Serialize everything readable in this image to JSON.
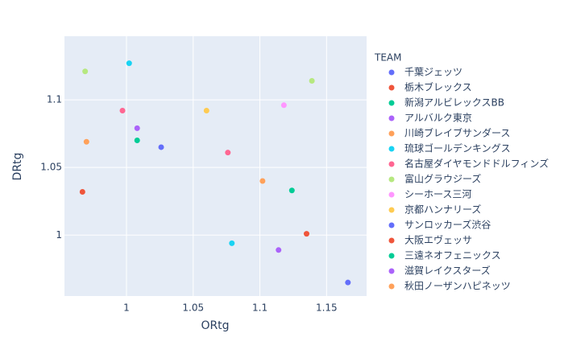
{
  "chart_data": {
    "type": "scatter",
    "x_label": "ORtg",
    "y_label": "DRtg",
    "legend_title": "TEAM",
    "xlim": [
      0.9535,
      1.18
    ],
    "xticks": [
      1,
      1.05,
      1.1,
      1.15
    ],
    "ylim": [
      0.955,
      1.147
    ],
    "yticks": [
      1,
      1.05,
      1.1
    ],
    "grid": true,
    "series": [
      {
        "name": "千葉ジェッツ",
        "color": "#636efa",
        "x": [
          1.026
        ],
        "values": [
          1.065
        ]
      },
      {
        "name": "栃木ブレックス",
        "color": "#EF553B",
        "x": [
          0.967
        ],
        "values": [
          1.032
        ]
      },
      {
        "name": "新潟アルビレックスBB",
        "color": "#00cc96",
        "x": [
          1.008
        ],
        "values": [
          1.07
        ]
      },
      {
        "name": "アルバルク東京",
        "color": "#ab63fa",
        "x": [
          1.008
        ],
        "values": [
          1.079
        ]
      },
      {
        "name": "川崎ブレイブサンダース",
        "color": "#FFA15A",
        "x": [
          0.97
        ],
        "values": [
          1.069
        ]
      },
      {
        "name": "琉球ゴールデンキングス",
        "color": "#19d3f3",
        "x": [
          1.002
        ],
        "values": [
          1.127
        ]
      },
      {
        "name": "名古屋ダイヤモンドドルフィンズ",
        "color": "#FF6692",
        "x": [
          0.997
        ],
        "values": [
          1.092
        ]
      },
      {
        "name": "富山グラウジーズ",
        "color": "#B6E880",
        "x": [
          0.969
        ],
        "values": [
          1.121
        ]
      },
      {
        "name": "シーホース三河",
        "color": "#FF97FF",
        "x": [
          1.118
        ],
        "values": [
          1.096
        ]
      },
      {
        "name": "京都ハンナリーズ",
        "color": "#FECB52",
        "x": [
          1.06
        ],
        "values": [
          1.092
        ]
      },
      {
        "name": "サンロッカーズ渋谷",
        "color": "#636efa",
        "x": [
          1.166
        ],
        "values": [
          0.965
        ]
      },
      {
        "name": "大阪エヴェッサ",
        "color": "#EF553B",
        "x": [
          1.135
        ],
        "values": [
          1.001
        ]
      },
      {
        "name": "三遠ネオフェニックス",
        "color": "#00cc96",
        "x": [
          1.124
        ],
        "values": [
          1.033
        ]
      },
      {
        "name": "滋賀レイクスターズ",
        "color": "#ab63fa",
        "x": [
          1.114
        ],
        "values": [
          0.989
        ]
      },
      {
        "name": "秋田ノーザンハピネッツ",
        "color": "#FFA15A",
        "x": [
          1.102
        ],
        "values": [
          1.04
        ]
      },
      {
        "name": null,
        "color": "#19d3f3",
        "x": [
          1.079
        ],
        "values": [
          0.994
        ]
      },
      {
        "name": null,
        "color": "#FF6692",
        "x": [
          1.076
        ],
        "values": [
          1.061
        ]
      },
      {
        "name": null,
        "color": "#B6E880",
        "x": [
          1.139
        ],
        "values": [
          1.114
        ]
      }
    ]
  }
}
